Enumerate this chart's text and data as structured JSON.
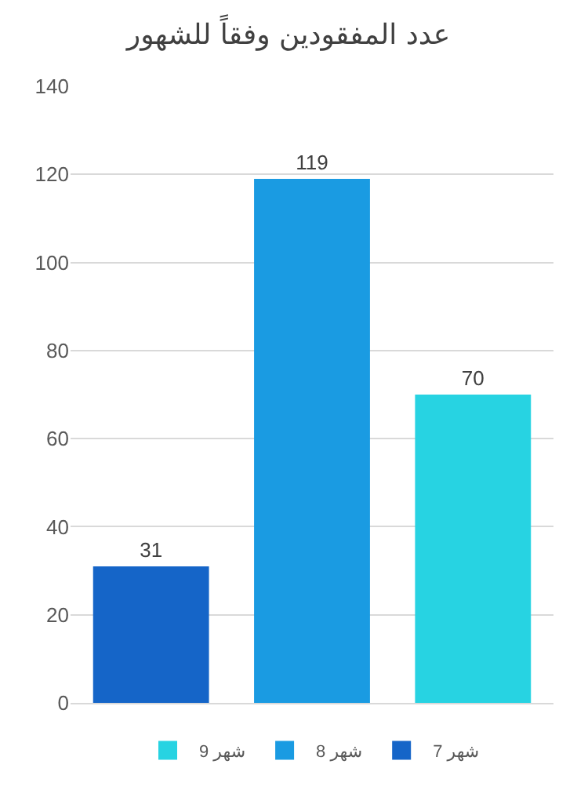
{
  "chart_data": {
    "type": "bar",
    "title": "عدد المفقودين وفقاً للشهور",
    "categories": [
      null,
      null,
      null
    ],
    "series": [
      {
        "name": "شهر 7",
        "color": "#1565c8",
        "values": [
          31,
          null,
          null
        ]
      },
      {
        "name": "شهر 8",
        "color": "#1a9be2",
        "values": [
          null,
          119,
          null
        ]
      },
      {
        "name": "شهر 9",
        "color": "#27d3e2",
        "values": [
          null,
          null,
          70
        ]
      }
    ],
    "ylim": [
      0,
      140
    ],
    "yticks": [
      0,
      20,
      40,
      60,
      80,
      100,
      120,
      140
    ],
    "grid": "y",
    "legend": "bottom",
    "data_labels": true
  }
}
